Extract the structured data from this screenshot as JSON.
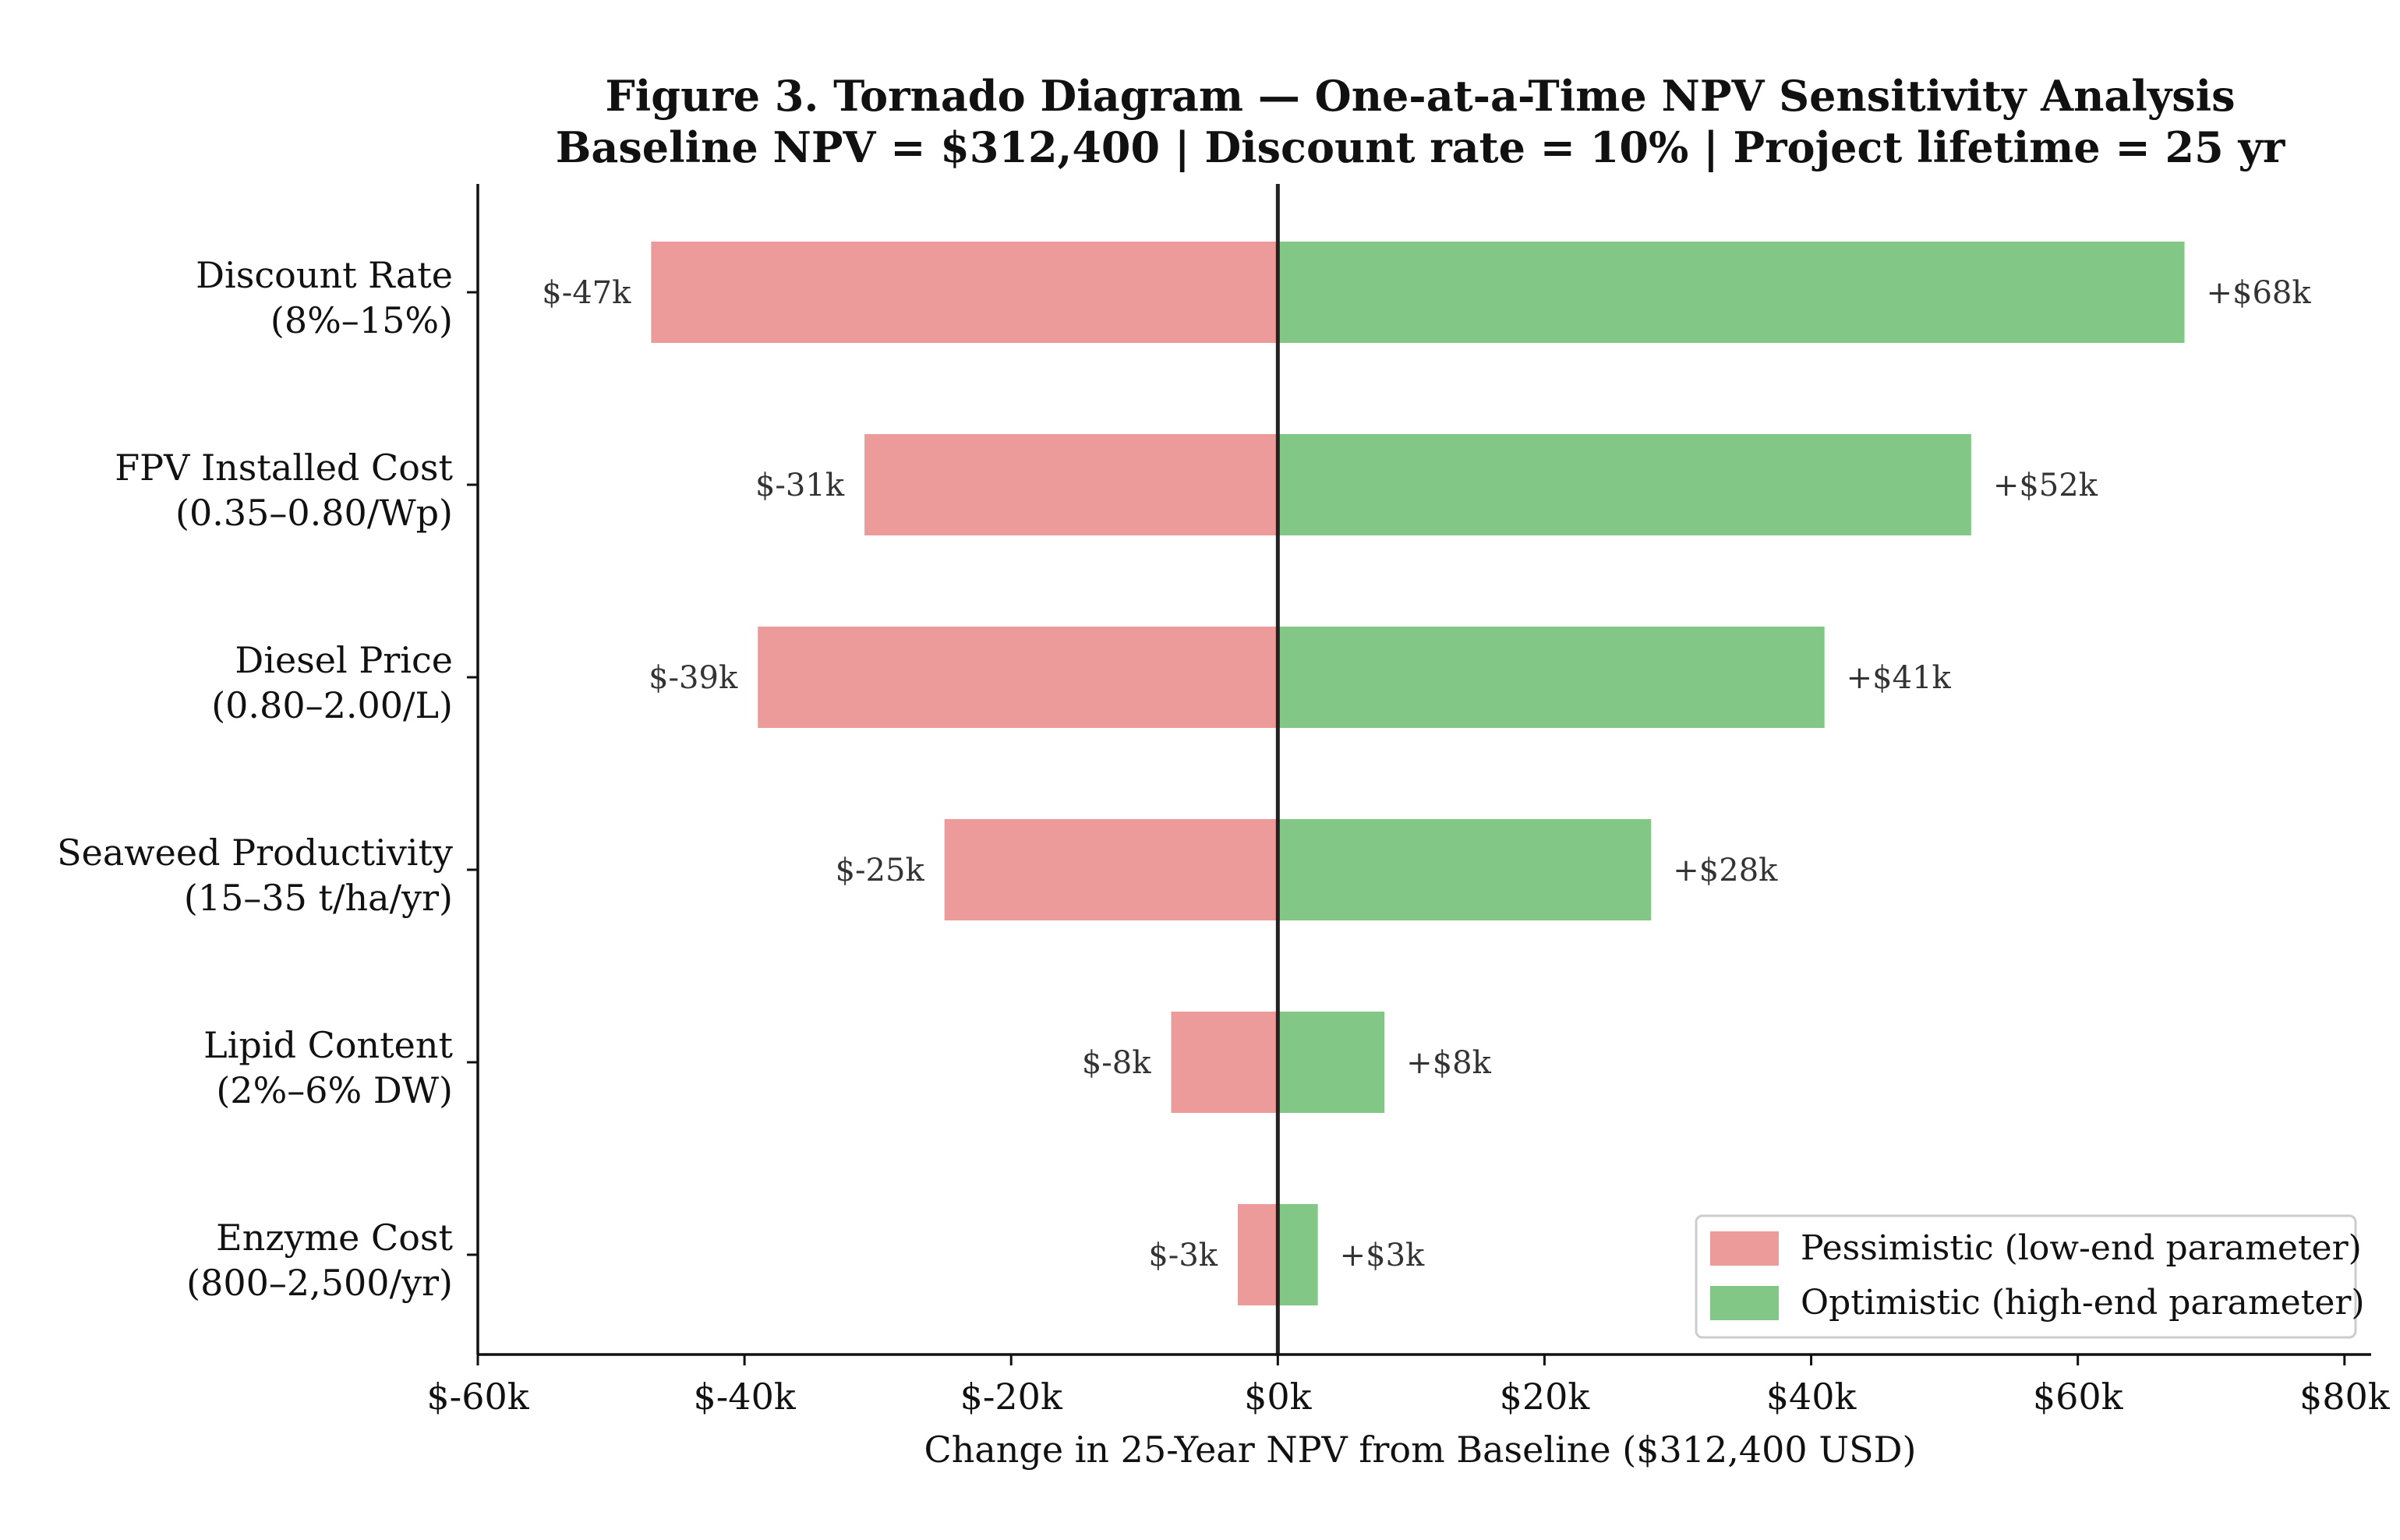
{
  "chart_data": {
    "type": "bar",
    "orientation": "horizontal",
    "variant": "tornado",
    "title": "Figure 3. Tornado Diagram — One-at-a-Time NPV Sensitivity Analysis",
    "subtitle": "Baseline NPV = $312,400 | Discount rate = 10% | Project lifetime = 25 yr",
    "xlabel": "Change in 25-Year NPV from Baseline ($312,400 USD)",
    "ylabel": "",
    "xlim": [
      -60,
      82
    ],
    "x_unit": "thousand USD",
    "x_ticks": [
      -60,
      -40,
      -20,
      0,
      20,
      40,
      60,
      80
    ],
    "x_tick_labels": [
      "$-60k",
      "$-40k",
      "$-20k",
      "$0k",
      "$20k",
      "$40k",
      "$60k",
      "$80k"
    ],
    "grid": false,
    "legend_position": "bottom-right",
    "categories": [
      {
        "name": "Discount Rate",
        "range": "(8%–15%)"
      },
      {
        "name": "FPV Installed Cost",
        "range": "(0.35–0.80/Wp)"
      },
      {
        "name": "Diesel Price",
        "range": "(0.80–2.00/L)"
      },
      {
        "name": "Seaweed Productivity",
        "range": "(15–35 t/ha/yr)"
      },
      {
        "name": "Lipid Content",
        "range": "(2%–6% DW)"
      },
      {
        "name": "Enzyme Cost",
        "range": "(800–2,500/yr)"
      }
    ],
    "series": [
      {
        "name": "Pessimistic (low-end parameter)",
        "color": "#ec9a9a",
        "values": [
          -47,
          -31,
          -39,
          -25,
          -8,
          -3
        ],
        "labels": [
          "$-47k",
          "$-31k",
          "$-39k",
          "$-25k",
          "$-8k",
          "$-3k"
        ]
      },
      {
        "name": "Optimistic (high-end parameter)",
        "color": "#82c785",
        "values": [
          68,
          52,
          41,
          28,
          8,
          3
        ],
        "labels": [
          "+$68k",
          "+$52k",
          "+$41k",
          "+$28k",
          "+$8k",
          "+$3k"
        ]
      }
    ]
  }
}
